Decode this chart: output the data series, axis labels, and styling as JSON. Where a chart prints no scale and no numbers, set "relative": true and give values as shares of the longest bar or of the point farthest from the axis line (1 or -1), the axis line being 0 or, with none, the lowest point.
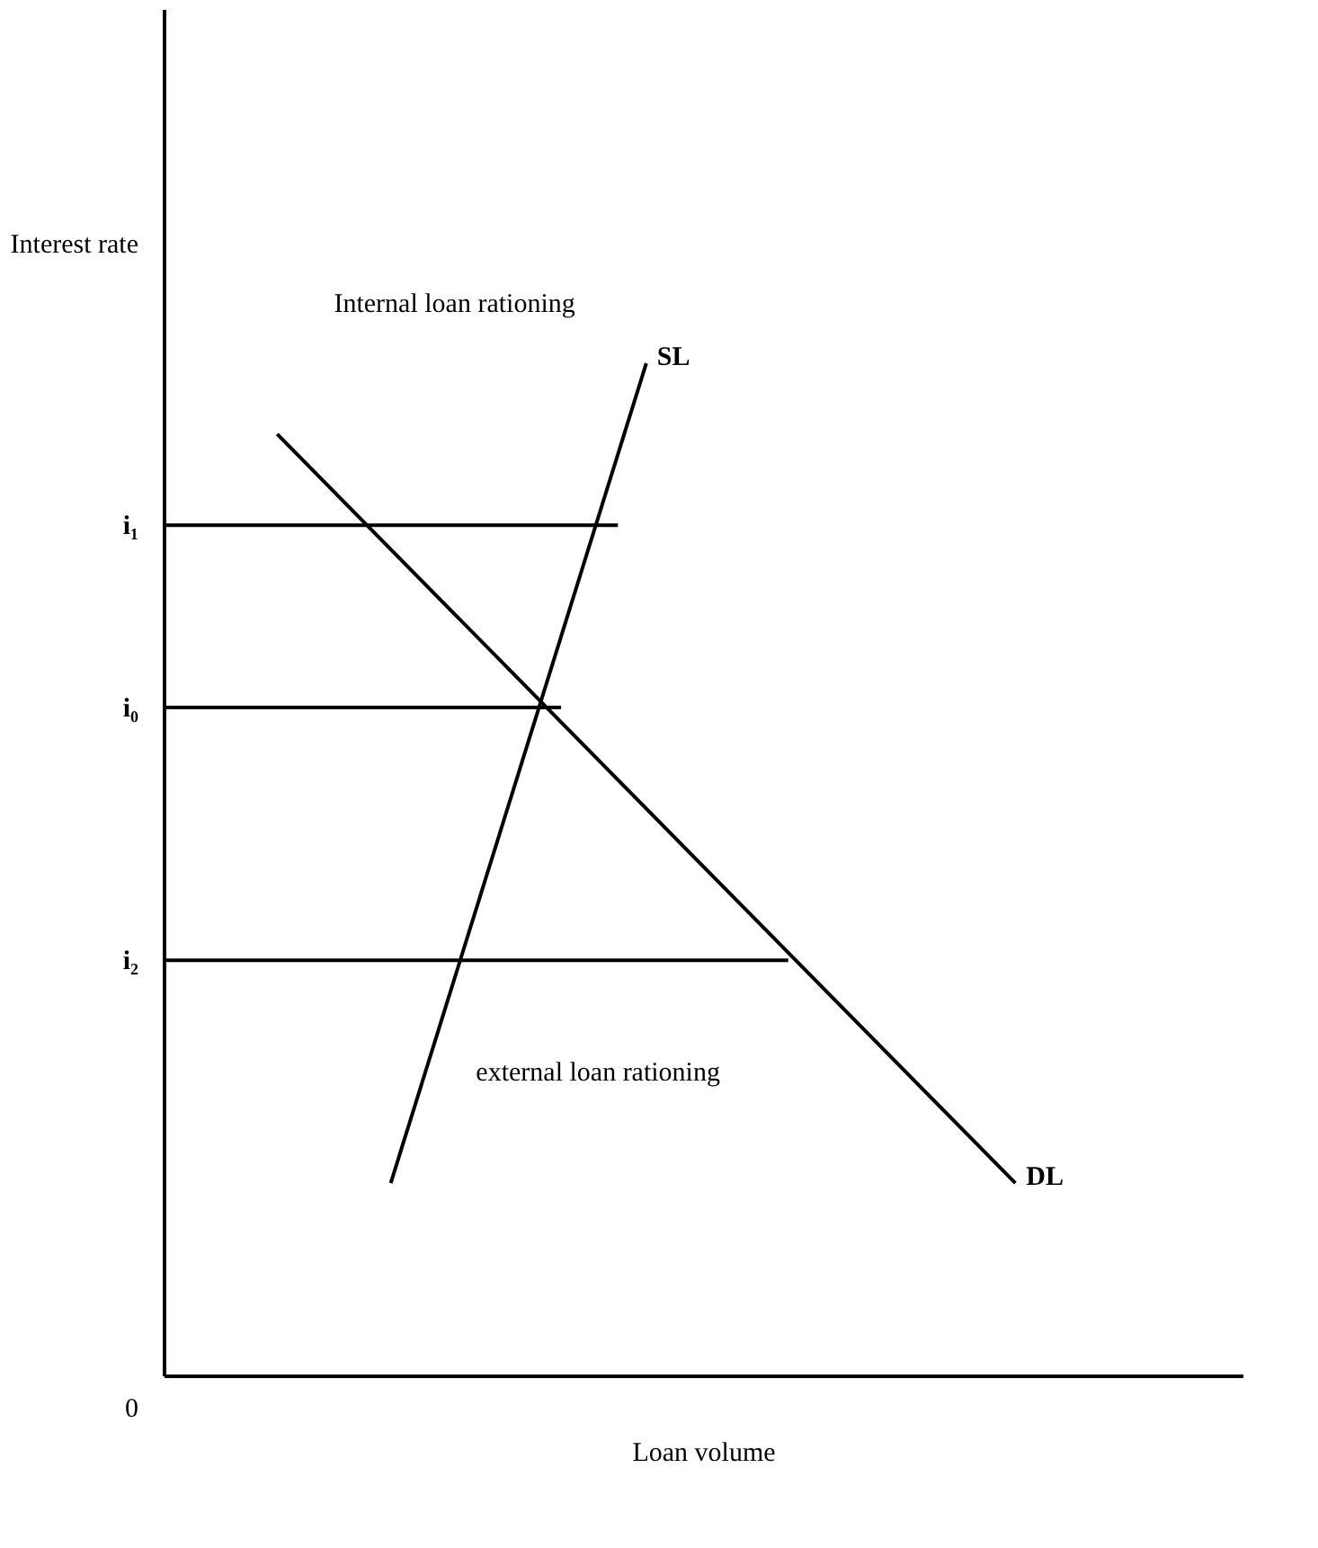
{
  "chart_data": {
    "type": "line",
    "relative": true,
    "xlabel": "Loan volume",
    "categories": [
      null,
      null,
      null,
      null,
      null,
      null,
      null,
      null,
      null,
      null,
      null,
      null,
      null,
      null,
      null,
      null,
      null,
      null,
      null,
      null,
      null,
      null,
      null,
      null,
      null,
      null,
      null,
      null,
      null,
      null,
      null,
      null,
      null,
      null,
      null,
      null,
      null,
      null,
      null
    ],
    "series": [
      {
        "name": "SL",
        "color": "#000000",
        "values": [
          null,
          null,
          null,
          null,
          null,
          null,
          null,
          null,
          0.19,
          null,
          null,
          null,
          null,
          null,
          null,
          null,
          null,
          1.0,
          null,
          null,
          null,
          null,
          null,
          null,
          null,
          null,
          null,
          null,
          null,
          null,
          null,
          null,
          null,
          null,
          null,
          null,
          null,
          null,
          null
        ]
      },
      {
        "name": "DL",
        "color": "#000000",
        "values": [
          null,
          null,
          null,
          null,
          0.93,
          null,
          null,
          null,
          null,
          null,
          null,
          null,
          null,
          null,
          null,
          null,
          null,
          null,
          null,
          null,
          null,
          null,
          null,
          null,
          null,
          null,
          null,
          null,
          null,
          null,
          0.19,
          null,
          null,
          null,
          null,
          null,
          null,
          null,
          null
        ]
      },
      {
        "name": "i₁",
        "color": "#000000",
        "values": [
          0.84,
          null,
          null,
          null,
          null,
          null,
          null,
          null,
          null,
          null,
          null,
          null,
          null,
          null,
          null,
          null,
          0.84,
          null,
          null,
          null,
          null,
          null,
          null,
          null,
          null,
          null,
          null,
          null,
          null,
          null,
          null,
          null,
          null,
          null,
          null,
          null,
          null,
          null,
          null
        ]
      },
      {
        "name": "i₀",
        "color": "#000000",
        "values": [
          0.66,
          null,
          null,
          null,
          null,
          null,
          null,
          null,
          null,
          null,
          null,
          null,
          null,
          null,
          0.66,
          null,
          null,
          null,
          null,
          null,
          null,
          null,
          null,
          null,
          null,
          null,
          null,
          null,
          null,
          null,
          null,
          null,
          null,
          null,
          null,
          null,
          null,
          null,
          null
        ]
      },
      {
        "name": "i₂",
        "color": "#000000",
        "values": [
          0.41,
          null,
          null,
          null,
          null,
          null,
          null,
          null,
          null,
          null,
          null,
          null,
          null,
          null,
          null,
          null,
          null,
          null,
          null,
          null,
          null,
          null,
          0.41,
          null,
          null,
          null,
          null,
          null,
          null,
          null,
          null,
          null,
          null,
          null,
          null,
          null,
          null,
          null,
          null
        ]
      }
    ],
    "annotations": [
      "Internal loan rationing",
      "external loan rationing",
      "0",
      "Interest rate"
    ],
    "legend": false,
    "grid": false,
    "marker": "none",
    "line_style": "solid"
  }
}
